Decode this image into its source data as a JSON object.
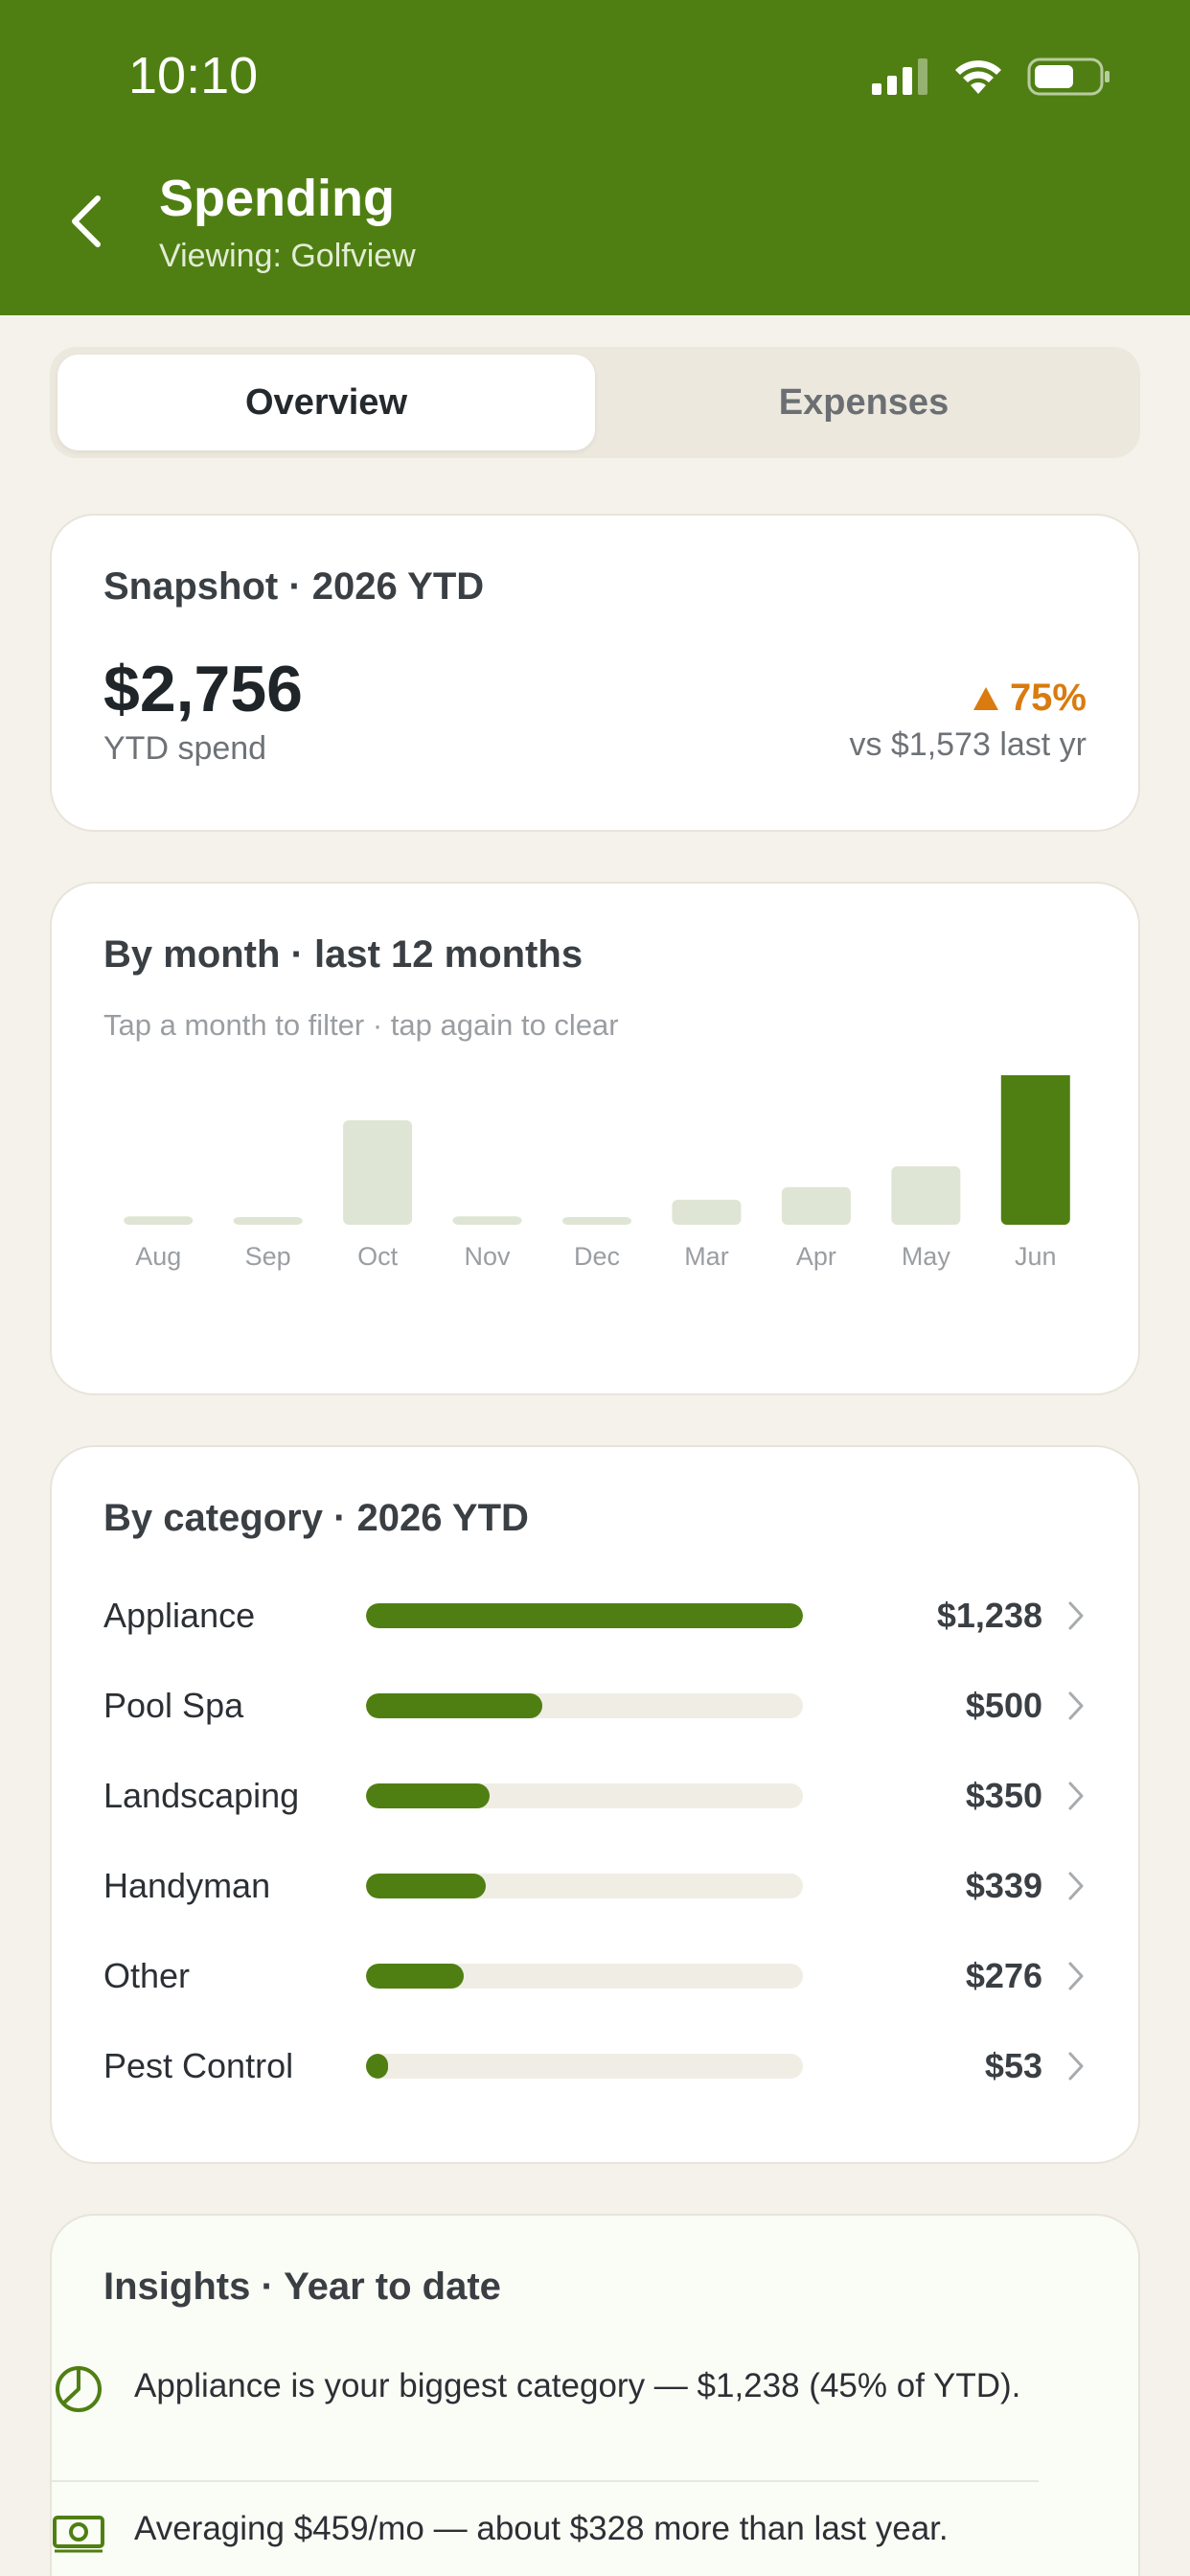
{
  "status_bar": {
    "time": "10:10"
  },
  "header": {
    "title": "Spending",
    "subtitle": "Viewing: Golfview"
  },
  "tabs": [
    {
      "label": "Overview",
      "active": true
    },
    {
      "label": "Expenses",
      "active": false
    }
  ],
  "snapshot": {
    "title": "Snapshot · 2026 YTD",
    "amount": "$2,756",
    "amount_label": "YTD spend",
    "change_pct": "75%",
    "comparison": "vs $1,573 last yr",
    "change_color": "#d97b0f"
  },
  "by_month": {
    "title": "By month · last 12 months",
    "hint": "Tap a month to filter · tap again to clear"
  },
  "chart_data": {
    "type": "bar",
    "categories": [
      "Aug",
      "Sep",
      "Oct",
      "Nov",
      "Dec",
      "Mar",
      "Apr",
      "May",
      "Jun"
    ],
    "values": [
      80,
      50,
      1000,
      80,
      70,
      240,
      360,
      560,
      1633
    ],
    "data_labels": {
      "Jun": "$1,633"
    },
    "highlighted": "Jun",
    "colors": {
      "default": "#dfe5d4",
      "highlight": "#4f7f12"
    }
  },
  "by_category": {
    "title": "By category · 2026 YTD",
    "items": [
      {
        "name": "Appliance",
        "amount": "$1,238",
        "value": 1238
      },
      {
        "name": "Pool Spa",
        "amount": "$500",
        "value": 500
      },
      {
        "name": "Landscaping",
        "amount": "$350",
        "value": 350
      },
      {
        "name": "Handyman",
        "amount": "$339",
        "value": 339
      },
      {
        "name": "Other",
        "amount": "$276",
        "value": 276
      },
      {
        "name": "Pest Control",
        "amount": "$53",
        "value": 53
      }
    ]
  },
  "insights": {
    "title": "Insights · Year to date",
    "items": [
      {
        "icon": "pie-chart-icon",
        "text": "Appliance is your biggest category — $1,238 (45% of YTD)."
      },
      {
        "icon": "cash-icon",
        "text": "Averaging $459/mo — about $328 more than last year."
      }
    ]
  },
  "colors": {
    "brand": "#4f7f12",
    "background": "#f5f2eb"
  }
}
